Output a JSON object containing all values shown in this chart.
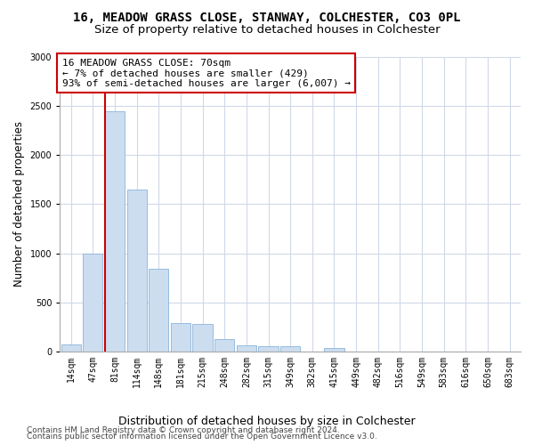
{
  "title": "16, MEADOW GRASS CLOSE, STANWAY, COLCHESTER, CO3 0PL",
  "subtitle": "Size of property relative to detached houses in Colchester",
  "xlabel": "Distribution of detached houses by size in Colchester",
  "ylabel": "Number of detached properties",
  "footer_line1": "Contains HM Land Registry data © Crown copyright and database right 2024.",
  "footer_line2": "Contains public sector information licensed under the Open Government Licence v3.0.",
  "annotation_title": "16 MEADOW GRASS CLOSE: 70sqm",
  "annotation_line2": "← 7% of detached houses are smaller (429)",
  "annotation_line3": "93% of semi-detached houses are larger (6,007) →",
  "bar_color": "#ccddf0",
  "bar_edge_color": "#8ab4d8",
  "redline_color": "#cc0000",
  "annotation_box_edgecolor": "#cc0000",
  "grid_color": "#d0d8e8",
  "categories": [
    "14sqm",
    "47sqm",
    "81sqm",
    "114sqm",
    "148sqm",
    "181sqm",
    "215sqm",
    "248sqm",
    "282sqm",
    "315sqm",
    "349sqm",
    "382sqm",
    "415sqm",
    "449sqm",
    "482sqm",
    "516sqm",
    "549sqm",
    "583sqm",
    "616sqm",
    "650sqm",
    "683sqm"
  ],
  "values": [
    75,
    1000,
    2450,
    1650,
    840,
    290,
    280,
    130,
    60,
    55,
    50,
    0,
    35,
    0,
    0,
    0,
    0,
    0,
    0,
    0,
    0
  ],
  "ylim": [
    0,
    3000
  ],
  "yticks": [
    0,
    500,
    1000,
    1500,
    2000,
    2500,
    3000
  ],
  "red_bar_index": 2,
  "title_fontsize": 10,
  "subtitle_fontsize": 9.5,
  "tick_fontsize": 7,
  "ylabel_fontsize": 8.5,
  "xlabel_fontsize": 9,
  "annotation_fontsize": 8,
  "footer_fontsize": 6.5
}
